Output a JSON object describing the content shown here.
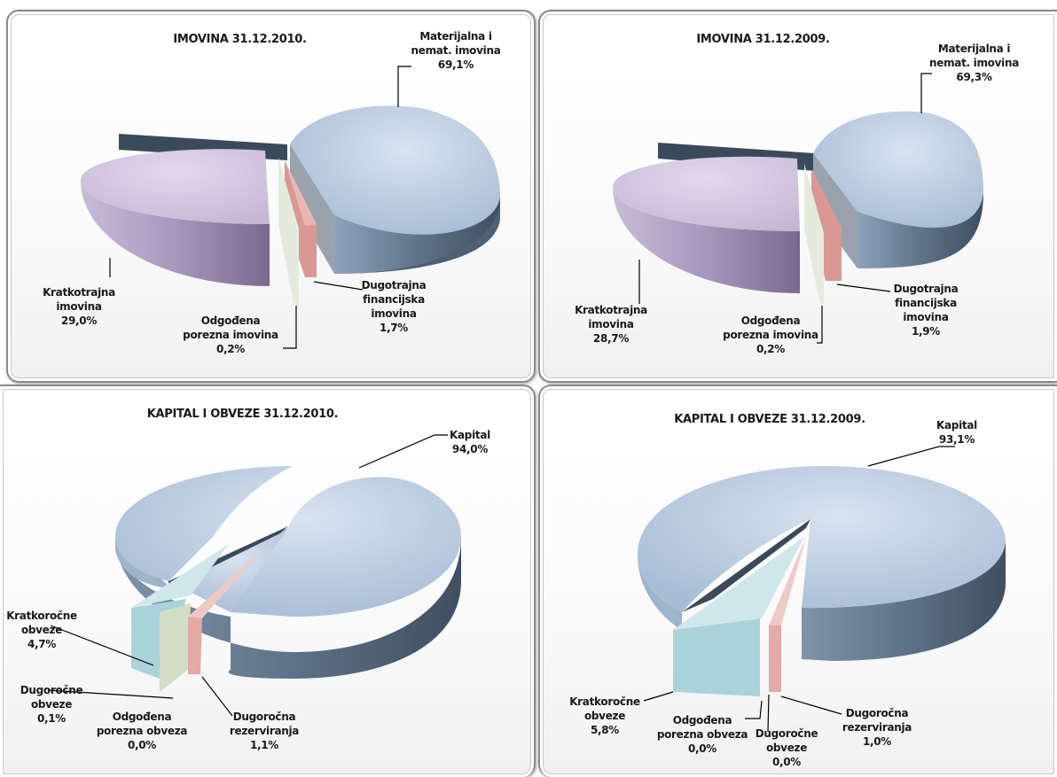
{
  "colors": {
    "materijalna": "#b9cbe0",
    "kratkotrajna": "#cfc3dc",
    "financijska": "#e3aaa6",
    "odgodena_imovina": "#d9e6cf",
    "dark_wedge": "#3a4a5a",
    "kapital": "#b9cbe0",
    "kratkorocne": "#b2d8dc",
    "dugorocne": "#d7e2c8",
    "rezerviranja": "#e3aaa6"
  },
  "chart_data": [
    {
      "type": "pie",
      "title": "IMOVINA 31.12.2010.",
      "slices": [
        {
          "label": [
            "Materijalna i",
            "nemat. imovina"
          ],
          "value": 69.1,
          "value_text": "69,1%"
        },
        {
          "label": [
            "Dugotrajna",
            "financijska",
            "imovina"
          ],
          "value": 1.7,
          "value_text": "1,7%"
        },
        {
          "label": [
            "Odgođena",
            "porezna imovina"
          ],
          "value": 0.2,
          "value_text": "0,2%"
        },
        {
          "label": [
            "Kratkotrajna",
            "imovina"
          ],
          "value": 29.0,
          "value_text": "29,0%"
        }
      ]
    },
    {
      "type": "pie",
      "title": "IMOVINA 31.12.2009.",
      "slices": [
        {
          "label": [
            "Materijalna i",
            "nemat. imovina"
          ],
          "value": 69.3,
          "value_text": "69,3%"
        },
        {
          "label": [
            "Dugotrajna",
            "financijska",
            "imovina"
          ],
          "value": 1.9,
          "value_text": "1,9%"
        },
        {
          "label": [
            "Odgođena",
            "porezna imovina"
          ],
          "value": 0.2,
          "value_text": "0,2%"
        },
        {
          "label": [
            "Kratkotrajna",
            "imovina"
          ],
          "value": 28.7,
          "value_text": "28,7%"
        }
      ]
    },
    {
      "type": "pie",
      "title": "KAPITAL I OBVEZE  31.12.2010.",
      "slices": [
        {
          "label": [
            "Kapital"
          ],
          "value": 94.0,
          "value_text": "94,0%"
        },
        {
          "label": [
            "Dugoročna",
            "rezerviranja"
          ],
          "value": 1.1,
          "value_text": "1,1%"
        },
        {
          "label": [
            "Odgođena",
            "porezna obveza"
          ],
          "value": 0.0,
          "value_text": "0,0%"
        },
        {
          "label": [
            "Dugoročne",
            "obveze"
          ],
          "value": 0.1,
          "value_text": "0,1%"
        },
        {
          "label": [
            "Kratkoročne",
            "obveze"
          ],
          "value": 4.7,
          "value_text": "4,7%"
        }
      ]
    },
    {
      "type": "pie",
      "title": "KAPITAL I OBVEZE  31.12.2009.",
      "slices": [
        {
          "label": [
            "Kapital"
          ],
          "value": 93.1,
          "value_text": "93,1%"
        },
        {
          "label": [
            "Dugoročna",
            "rezerviranja"
          ],
          "value": 1.0,
          "value_text": "1,0%"
        },
        {
          "label": [
            "Dugoročne",
            "obveze"
          ],
          "value": 0.0,
          "value_text": "0,0%"
        },
        {
          "label": [
            "Odgođena",
            "porezna obveza"
          ],
          "value": 0.0,
          "value_text": "0,0%"
        },
        {
          "label": [
            "Kratkoročne",
            "obveze"
          ],
          "value": 5.8,
          "value_text": "5,8%"
        }
      ]
    }
  ]
}
